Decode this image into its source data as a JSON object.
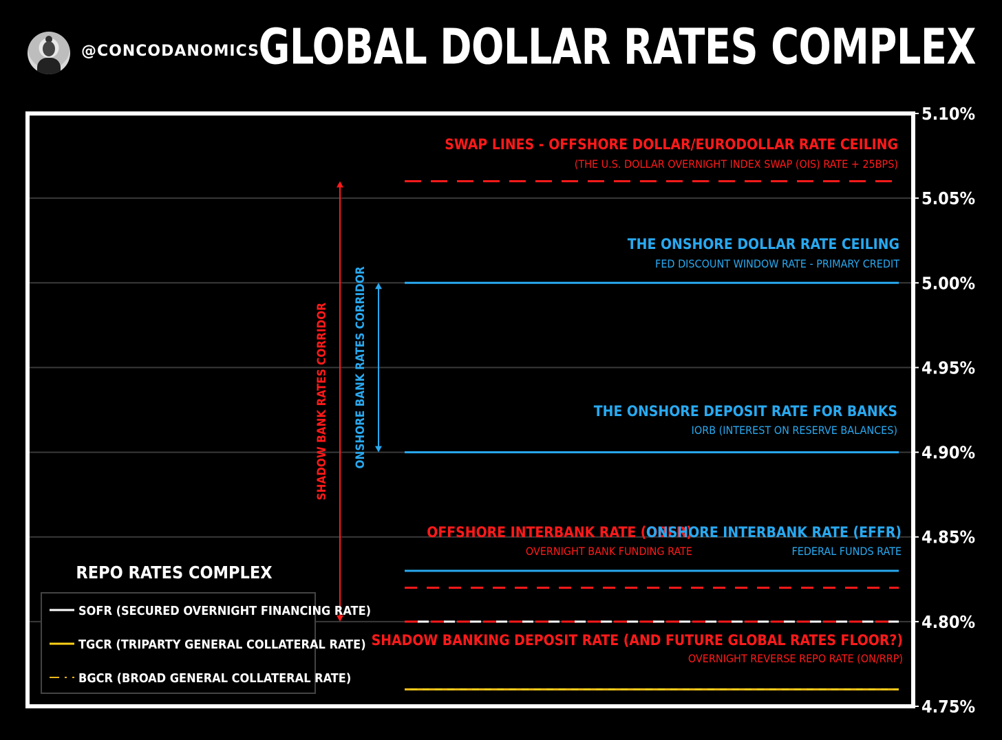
{
  "header": {
    "handle": "@CONCODANOMICS",
    "title": "GLOBAL DOLLAR RATES COMPLEX"
  },
  "colors": {
    "red": "#ff1a1a",
    "blue": "#29a9f0",
    "white": "#ffffff",
    "yellow": "#ffd21a",
    "gold": "#f0b91a",
    "grid": "#3a3a3a"
  },
  "chart_data": {
    "type": "line",
    "ylim": [
      4.75,
      5.1
    ],
    "y_ticks": [
      "4.75%",
      "4.80%",
      "4.85%",
      "4.90%",
      "4.95%",
      "5.00%",
      "5.05%",
      "5.10%"
    ],
    "y_tick_values": [
      4.75,
      4.8,
      4.85,
      4.9,
      4.95,
      5.0,
      5.05,
      5.1
    ],
    "grid": true,
    "series": [
      {
        "key": "swap",
        "value": 5.06,
        "color": "red",
        "style": "dashed",
        "title": "SWAP LINES - OFFSHORE DOLLAR/EURODOLLAR RATE CEILING",
        "subtitle": "(THE U.S. DOLLAR OVERNIGHT INDEX SWAP (OIS) RATE + 25BPS)"
      },
      {
        "key": "discount",
        "value": 5.0,
        "color": "blue",
        "style": "solid",
        "title": "THE ONSHORE DOLLAR RATE CEILING",
        "subtitle": "FED DISCOUNT WINDOW RATE - PRIMARY CREDIT"
      },
      {
        "key": "iorb",
        "value": 4.9,
        "color": "blue",
        "style": "solid",
        "title": "THE ONSHORE DEPOSIT RATE FOR BANKS",
        "subtitle": "IORB (INTEREST ON RESERVE BALANCES)"
      },
      {
        "key": "effr",
        "value": 4.83,
        "color": "blue",
        "style": "solid",
        "title": "ONSHORE INTERBANK RATE (EFFR)",
        "subtitle": "FEDERAL FUNDS RATE"
      },
      {
        "key": "obfr",
        "value": 4.82,
        "color": "red",
        "style": "dashed",
        "title": "OFFSHORE INTERBANK RATE (OBFR)",
        "subtitle": "OVERNIGHT BANK FUNDING RATE"
      },
      {
        "key": "onrrp",
        "value": 4.8,
        "color": "red",
        "style": "dashed",
        "title": "SHADOW BANKING DEPOSIT RATE (AND FUTURE GLOBAL RATES FLOOR?)",
        "subtitle": "OVERNIGHT REVERSE REPO RATE (ON/RRP)"
      },
      {
        "key": "sofr",
        "value": 4.8,
        "color": "white",
        "style": "dashed"
      },
      {
        "key": "tgcr",
        "value": 4.76,
        "color": "yellow",
        "style": "solid"
      },
      {
        "key": "bgcr",
        "value": 4.76,
        "color": "gold",
        "style": "dashed"
      }
    ],
    "corridors": [
      {
        "label": "SHADOW BANK RATES CORRIDOR",
        "from": 4.8,
        "to": 5.06,
        "color": "red"
      },
      {
        "label": "ONSHORE BANK RATES CORRIDOR",
        "from": 4.9,
        "to": 5.0,
        "color": "blue"
      }
    ],
    "legend": {
      "title": "REPO RATES COMPLEX",
      "placement": "bottom-left",
      "items": [
        {
          "label": "SOFR (SECURED OVERNIGHT FINANCING RATE)",
          "color": "white",
          "style": "solid"
        },
        {
          "label": "TGCR (TRIPARTY GENERAL COLLATERAL RATE)",
          "color": "yellow",
          "style": "solid"
        },
        {
          "label": "BGCR (BROAD GENERAL COLLATERAL RATE)",
          "color": "gold",
          "style": "dashed"
        }
      ]
    }
  }
}
